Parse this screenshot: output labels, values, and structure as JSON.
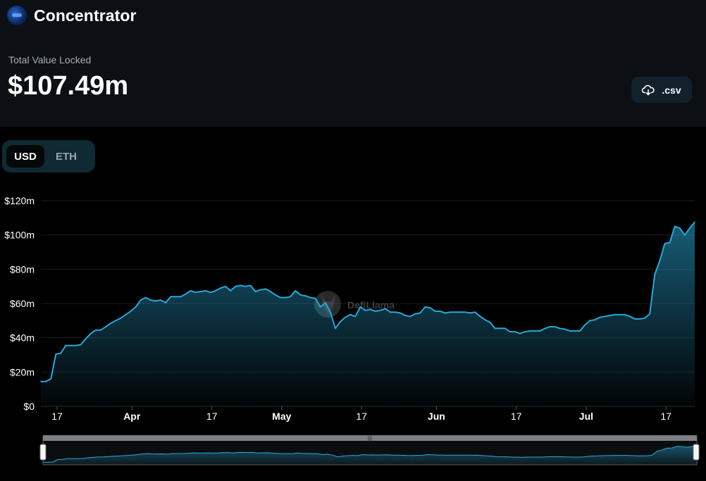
{
  "header": {
    "title": "Concentrator",
    "tvl_label": "Total Value Locked",
    "tvl_value": "$107.49m",
    "csv_label": ".csv"
  },
  "toggle": {
    "options": [
      "USD",
      "ETH"
    ],
    "selected": "USD"
  },
  "watermark": "DefiLlama",
  "colors": {
    "line": "#2aa8d8",
    "background": "#000000",
    "panel": "#0c1014"
  },
  "chart_data": {
    "type": "area",
    "xlabel": "",
    "ylabel": "",
    "ylim": [
      0,
      120
    ],
    "y_unit": "m",
    "y_ticks": [
      "$0",
      "$20m",
      "$40m",
      "$60m",
      "$80m",
      "$100m",
      "$120m"
    ],
    "x_ticks": [
      {
        "label": "17",
        "day": 0,
        "bold": false
      },
      {
        "label": "Apr",
        "day": 15,
        "bold": true
      },
      {
        "label": "17",
        "day": 31,
        "bold": false
      },
      {
        "label": "May",
        "day": 45,
        "bold": true
      },
      {
        "label": "17",
        "day": 61,
        "bold": false
      },
      {
        "label": "Jun",
        "day": 76,
        "bold": true
      },
      {
        "label": "17",
        "day": 92,
        "bold": false
      },
      {
        "label": "Jul",
        "day": 106,
        "bold": true
      },
      {
        "label": "17",
        "day": 122,
        "bold": false
      }
    ],
    "series": [
      {
        "values": [
          14.5,
          14.5,
          16,
          30.5,
          31,
          35.5,
          35.5,
          35.5,
          36,
          39.5,
          42.5,
          44.5,
          44.5,
          46.5,
          48.5,
          50,
          51.5,
          53.5,
          55.5,
          58,
          62,
          63.5,
          62,
          61.5,
          62,
          60.5,
          64,
          64,
          64,
          65.5,
          67.5,
          66.5,
          67,
          67.5,
          66.5,
          67.5,
          69,
          70,
          67.5,
          70,
          70.5,
          70,
          70.5,
          67,
          68,
          68.5,
          67,
          65,
          63.5,
          63.5,
          64,
          67.5,
          65,
          64.5,
          63.5,
          63,
          58,
          60.5,
          55,
          45.5,
          49.5,
          52,
          53.5,
          52.5,
          58,
          56,
          56.5,
          55.5,
          56,
          57,
          55,
          55,
          54.5,
          53,
          52.5,
          54,
          54.5,
          58,
          57.5,
          55.5,
          55.5,
          54.5,
          55,
          55,
          55,
          55,
          54.5,
          55,
          52.5,
          50.5,
          49,
          45.5,
          45.5,
          45.5,
          43.5,
          43.5,
          42.5,
          43.5,
          44,
          44,
          44,
          45.5,
          46.5,
          46.5,
          45.5,
          45,
          44,
          44,
          44,
          47.5,
          50,
          50.5,
          52,
          52.5,
          53,
          53.5,
          53.5,
          53.5,
          52.5,
          51,
          51,
          51.5,
          54,
          77,
          85,
          95,
          95.5,
          105,
          104,
          100,
          104,
          107.5
        ]
      }
    ]
  }
}
